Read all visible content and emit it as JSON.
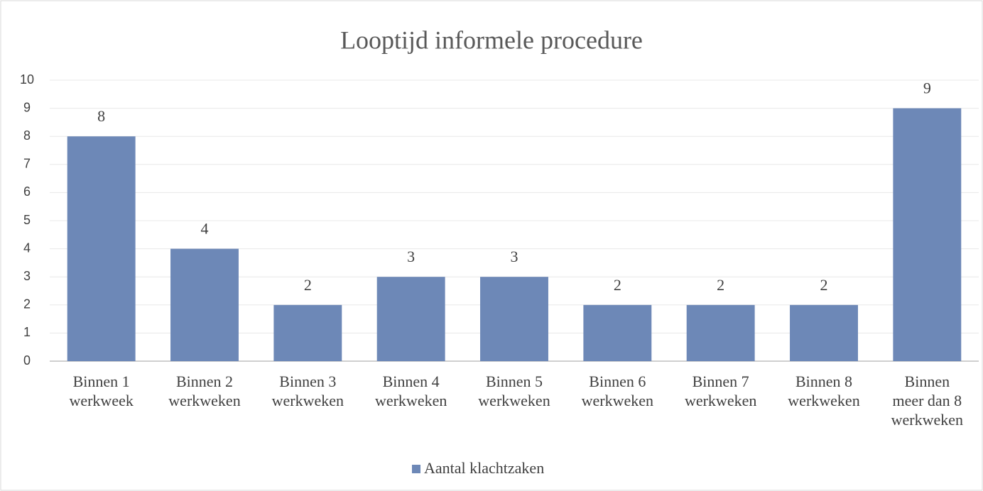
{
  "chart_data": {
    "type": "bar",
    "title": "Looptijd informele procedure",
    "categories": [
      [
        "Binnen 1",
        "werkweek"
      ],
      [
        "Binnen 2",
        "werkweken"
      ],
      [
        "Binnen 3",
        "werkweken"
      ],
      [
        "Binnen 4",
        "werkweken"
      ],
      [
        "Binnen 5",
        "werkweken"
      ],
      [
        "Binnen 6",
        "werkweken"
      ],
      [
        "Binnen 7",
        "werkweken"
      ],
      [
        "Binnen 8",
        "werkweken"
      ],
      [
        "Binnen",
        "meer dan 8",
        "werkweken"
      ]
    ],
    "series": [
      {
        "name": "Aantal klachtzaken",
        "color": "#6d88b7",
        "values": [
          8,
          4,
          2,
          3,
          3,
          2,
          2,
          2,
          9
        ]
      }
    ],
    "ylim": [
      0,
      10
    ],
    "yticks": [
      0,
      1,
      2,
      3,
      4,
      5,
      6,
      7,
      8,
      9,
      10
    ],
    "grid": true,
    "legend": "bottom"
  }
}
